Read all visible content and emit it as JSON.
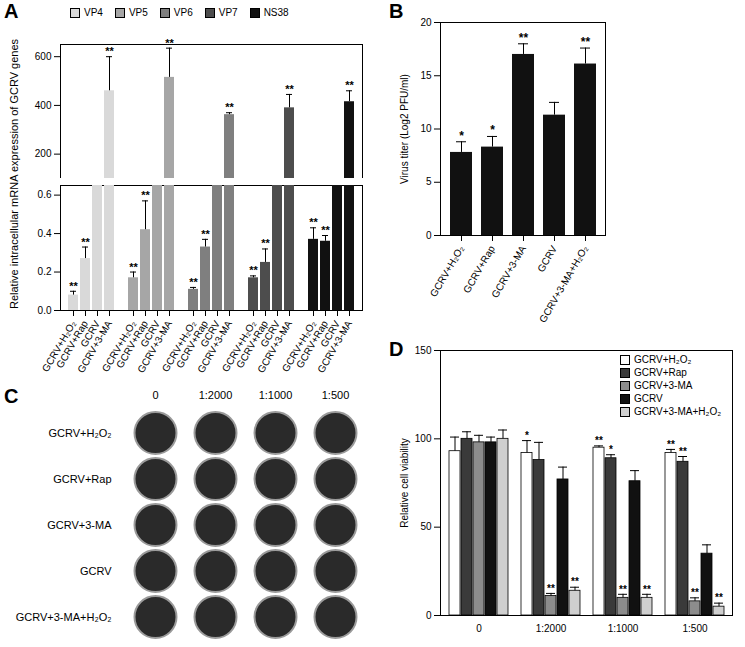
{
  "chart_data": [
    {
      "type": "bar",
      "title": "A",
      "ylabel": "Relative intracellular mRNA expression of GCRV genes",
      "categories": [
        "GCRV+H₂O₂",
        "GCRV+Rap",
        "GCRV",
        "GCRV+3-MA"
      ],
      "series": [
        {
          "name": "VP4",
          "color": "#d9d9d9",
          "values": [
            0.08,
            0.27,
            1,
            460
          ],
          "errors": [
            0.02,
            0.06,
            null,
            140
          ],
          "significance": [
            "**",
            "**",
            null,
            "**"
          ]
        },
        {
          "name": "VP5",
          "color": "#a6a6a6",
          "values": [
            0.17,
            0.42,
            1,
            515
          ],
          "errors": [
            0.03,
            0.15,
            null,
            120
          ],
          "significance": [
            "**",
            "**",
            null,
            "**"
          ]
        },
        {
          "name": "VP6",
          "color": "#7f7f7f",
          "values": [
            0.11,
            0.33,
            1,
            362
          ],
          "errors": [
            0.01,
            0.04,
            null,
            8
          ],
          "significance": [
            "**",
            "**",
            null,
            "**"
          ]
        },
        {
          "name": "VP7",
          "color": "#4d4d4d",
          "values": [
            0.17,
            0.25,
            1,
            390
          ],
          "errors": [
            0.01,
            0.07,
            null,
            55
          ],
          "significance": [
            "**",
            "**",
            null,
            "**"
          ]
        },
        {
          "name": "NS38",
          "color": "#111111",
          "values": [
            0.37,
            0.36,
            1,
            415
          ],
          "errors": [
            0.06,
            0.03,
            null,
            45
          ],
          "significance": [
            "**",
            "**",
            null,
            "**"
          ]
        }
      ],
      "ylim": [
        0,
        650
      ],
      "y_break": [
        0.65,
        100
      ],
      "yticks": [
        {
          "value": 0,
          "label": "0.0"
        },
        0.2,
        0.4,
        0.6,
        200,
        400,
        600
      ],
      "legend": "top"
    },
    {
      "type": "bar",
      "title": "B",
      "ylabel": "Virus titer (Log2 PFU/ml)",
      "categories": [
        "GCRV+H₂O₂",
        "GCRV+Rap",
        "GCRV+3-MA",
        "GCRV",
        "GCRV+3-MA+H₂O₂"
      ],
      "values": [
        7.8,
        8.3,
        17,
        11.3,
        16.1
      ],
      "errors": [
        1,
        1,
        1,
        1.2,
        1.5
      ],
      "significance": [
        "*",
        "*",
        "**",
        null,
        "**"
      ],
      "color": "#111111",
      "ylim": [
        0,
        20
      ],
      "yticks": [
        0,
        5,
        10,
        15,
        20
      ]
    },
    {
      "type": "image_grid",
      "title": "C",
      "rows": [
        "GCRV+H₂O₂",
        "GCRV+Rap",
        "GCRV+3-MA",
        "GCRV",
        "GCRV+3-MA+H₂O₂"
      ],
      "columns": [
        "0",
        "1:2000",
        "1:1000",
        "1:500"
      ]
    },
    {
      "type": "bar",
      "title": "D",
      "ylabel": "Relative cell viability",
      "categories": [
        "0",
        "1:2000",
        "1:1000",
        "1:500"
      ],
      "series": [
        {
          "name": "GCRV+H₂O₂",
          "color": "#ffffff",
          "values": [
            93,
            92,
            95,
            92
          ],
          "errors": [
            8,
            7,
            1,
            2
          ],
          "significance": [
            null,
            "*",
            "**",
            "**"
          ]
        },
        {
          "name": "GCRV+Rap",
          "color": "#3a3a3a",
          "values": [
            100,
            88,
            89,
            87
          ],
          "errors": [
            4,
            10,
            2,
            3
          ],
          "significance": [
            null,
            null,
            "*",
            "**"
          ]
        },
        {
          "name": "GCRV+3-MA",
          "color": "#8c8c8c",
          "values": [
            98,
            11,
            10,
            8
          ],
          "errors": [
            4,
            1.5,
            2,
            2
          ],
          "significance": [
            null,
            "**",
            "**",
            "**"
          ]
        },
        {
          "name": "GCRV",
          "color": "#111111",
          "values": [
            98,
            77,
            76,
            35
          ],
          "errors": [
            3,
            7,
            6,
            5
          ],
          "significance": [
            null,
            null,
            null,
            null
          ]
        },
        {
          "name": "GCRV+3-MA+H₂O₂",
          "color": "#cfcfcf",
          "values": [
            100,
            14,
            10,
            5
          ],
          "errors": [
            5,
            2,
            2,
            2
          ],
          "significance": [
            null,
            "**",
            "**",
            "**"
          ]
        }
      ],
      "ylim": [
        0,
        150
      ],
      "yticks": [
        0,
        50,
        100,
        150
      ],
      "legend": "upper right"
    }
  ]
}
